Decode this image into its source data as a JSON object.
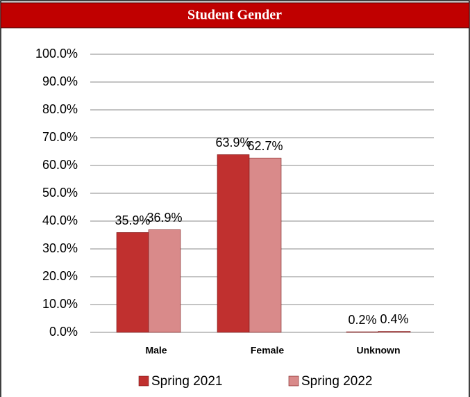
{
  "chart_data": {
    "type": "bar",
    "title": "Student Gender",
    "categories": [
      "Male",
      "Female",
      "Unknown"
    ],
    "series": [
      {
        "name": "Spring 2021",
        "color": "#c0302f",
        "values": [
          35.9,
          63.9,
          0.2
        ],
        "value_labels": [
          "35.9%",
          "63.9%",
          "0.2%"
        ]
      },
      {
        "name": "Spring 2022",
        "color": "#d98a8a",
        "values": [
          36.9,
          62.7,
          0.4
        ],
        "value_labels": [
          "36.9%",
          "62.7%",
          "0.4%"
        ]
      }
    ],
    "ylim": [
      0,
      100
    ],
    "yticks": [
      {
        "value": 0,
        "label": "0.0%"
      },
      {
        "value": 10,
        "label": "10.0%"
      },
      {
        "value": 20,
        "label": "20.0%"
      },
      {
        "value": 30,
        "label": "30.0%"
      },
      {
        "value": 40,
        "label": "40.0%"
      },
      {
        "value": 50,
        "label": "50.0%"
      },
      {
        "value": 60,
        "label": "60.0%"
      },
      {
        "value": 70,
        "label": "70.0%"
      },
      {
        "value": 80,
        "label": "80.0%"
      },
      {
        "value": 90,
        "label": "90.0%"
      },
      {
        "value": 100,
        "label": "100.0%"
      }
    ],
    "grid": true,
    "legend": "bottom"
  }
}
